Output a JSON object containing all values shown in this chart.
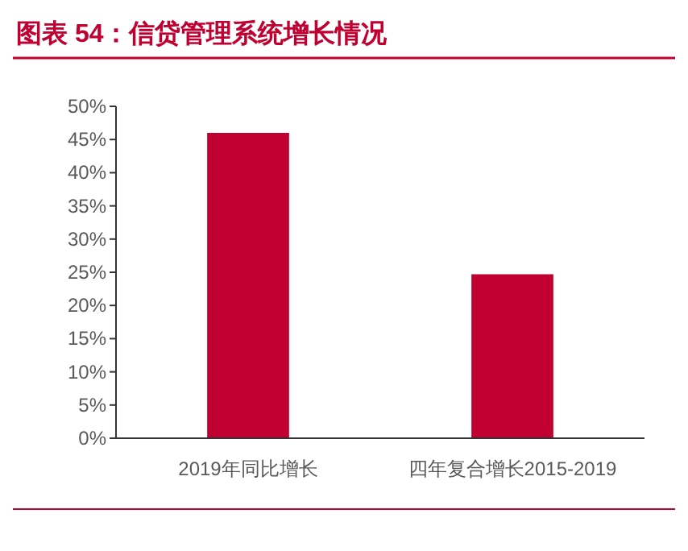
{
  "chart_data": {
    "type": "bar",
    "title": "图表 54：信贷管理系统增长情况",
    "categories": [
      "2019年同比增长",
      "四年复合增长2015-2019"
    ],
    "values": [
      46,
      24.7
    ],
    "color": "#c00030",
    "ylim": [
      0,
      50
    ],
    "yticks": [
      {
        "value": 0,
        "label": "0%"
      },
      {
        "value": 5,
        "label": "5%"
      },
      {
        "value": 10,
        "label": "10%"
      },
      {
        "value": 15,
        "label": "15%"
      },
      {
        "value": 20,
        "label": "20%"
      },
      {
        "value": 25,
        "label": "25%"
      },
      {
        "value": 30,
        "label": "30%"
      },
      {
        "value": 35,
        "label": "35%"
      },
      {
        "value": 40,
        "label": "40%"
      },
      {
        "value": 45,
        "label": "45%"
      },
      {
        "value": 50,
        "label": "50%"
      }
    ]
  }
}
